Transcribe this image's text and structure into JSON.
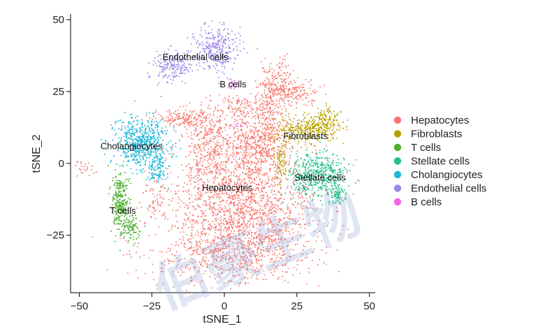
{
  "chart_data": {
    "type": "scatter",
    "title": "",
    "xlabel": "tSNE_1",
    "ylabel": "tSNE_2",
    "xlim": [
      -53,
      52
    ],
    "ylim": [
      -45,
      52
    ],
    "xticks": [
      -50,
      -25,
      0,
      25,
      50
    ],
    "yticks": [
      50,
      25,
      0,
      -25
    ],
    "xtick_labels": [
      "−50",
      "−25",
      "0",
      "25",
      "50"
    ],
    "ytick_labels": [
      "50",
      "25",
      "0",
      "−25"
    ],
    "series": [
      {
        "name": "Hepatocytes",
        "color": "#F8766D",
        "label": "Hepatocytes",
        "label_at": [
          1,
          -9.5
        ],
        "clusters": [
          {
            "cx": 6,
            "cy": -15,
            "sx": 16,
            "sy": 15,
            "n": 1900
          },
          {
            "cx": 2,
            "cy": -32,
            "sx": 18,
            "sy": 6,
            "n": 450
          },
          {
            "cx": 9,
            "cy": 8,
            "sx": 7,
            "sy": 7,
            "n": 400
          },
          {
            "cx": -14,
            "cy": 16,
            "sx": 6,
            "sy": 2,
            "n": 160
          },
          {
            "cx": -6,
            "cy": 7,
            "sx": 4,
            "sy": 9,
            "n": 300
          },
          {
            "cx": 18,
            "cy": 28,
            "sx": 4,
            "sy": 5,
            "n": 170
          },
          {
            "cx": 24,
            "cy": 25,
            "sx": 6,
            "sy": 2.5,
            "n": 160
          },
          {
            "cx": 15,
            "cy": 14,
            "sx": 3,
            "sy": 9,
            "n": 200
          },
          {
            "cx": 7,
            "cy": 20,
            "sx": 7,
            "sy": 2.5,
            "n": 110
          },
          {
            "cx": -48,
            "cy": -1,
            "sx": 2.5,
            "sy": 1.5,
            "n": 24
          },
          {
            "cx": -24,
            "cy": -13,
            "sx": 3,
            "sy": 4,
            "n": 55
          }
        ]
      },
      {
        "name": "Fibroblasts",
        "color": "#B79F00",
        "label": "Fibroblasts",
        "label_at": [
          28,
          8.5
        ],
        "clusters": [
          {
            "cx": 28,
            "cy": 12,
            "sx": 7,
            "sy": 3,
            "n": 320
          },
          {
            "cx": 35,
            "cy": 15,
            "sx": 3,
            "sy": 3,
            "n": 110
          },
          {
            "cx": 19,
            "cy": 2,
            "sx": 1.5,
            "sy": 5,
            "n": 80
          }
        ]
      },
      {
        "name": "T cells",
        "color": "#4CAF2E",
        "label": "T cells",
        "label_at": [
          -35,
          -17.5
        ],
        "clusters": [
          {
            "cx": -36,
            "cy": -14,
            "sx": 1.8,
            "sy": 7,
            "n": 280
          },
          {
            "cx": -32,
            "cy": -22,
            "sx": 2,
            "sy": 3,
            "n": 90
          }
        ]
      },
      {
        "name": "Stellate cells",
        "color": "#20BF8A",
        "label": "Stellate cells",
        "label_at": [
          33,
          -6
        ],
        "clusters": [
          {
            "cx": 32,
            "cy": -4,
            "sx": 6,
            "sy": 5,
            "n": 500
          },
          {
            "cx": 39,
            "cy": -11,
            "sx": 2,
            "sy": 2,
            "n": 70
          }
        ]
      },
      {
        "name": "Cholangiocytes",
        "color": "#1CB6D8",
        "label": "Cholangiocytes",
        "label_at": [
          -32,
          5
        ],
        "clusters": [
          {
            "cx": -29,
            "cy": 7,
            "sx": 6,
            "sy": 6,
            "n": 600
          },
          {
            "cx": -23,
            "cy": -2,
            "sx": 2.5,
            "sy": 3,
            "n": 90
          }
        ]
      },
      {
        "name": "Endothelial cells",
        "color": "#9E86EC",
        "label": "Endothelial cells",
        "label_at": [
          -10,
          36
        ],
        "clusters": [
          {
            "cx": -3,
            "cy": 40,
            "sx": 5,
            "sy": 5,
            "n": 320
          },
          {
            "cx": -18,
            "cy": 34,
            "sx": 4.5,
            "sy": 3,
            "n": 200
          }
        ]
      },
      {
        "name": "B cells",
        "color": "#F564E3",
        "label": "B cells",
        "label_at": [
          3,
          26.5
        ],
        "clusters": [
          {
            "cx": 3,
            "cy": 28,
            "sx": 1.2,
            "sy": 1.2,
            "n": 22
          },
          {
            "cx": 4,
            "cy": 13,
            "sx": 1,
            "sy": 1,
            "n": 8
          }
        ]
      }
    ]
  },
  "legend": {
    "position": "right",
    "items": [
      {
        "label": "Hepatocytes",
        "color": "#F8766D"
      },
      {
        "label": "Fibroblasts",
        "color": "#B79F00"
      },
      {
        "label": "T cells",
        "color": "#4CAF2E"
      },
      {
        "label": "Stellate cells",
        "color": "#20BF8A"
      },
      {
        "label": "Cholangiocytes",
        "color": "#1CB6D8"
      },
      {
        "label": "Endothelial cells",
        "color": "#9E86EC"
      },
      {
        "label": "B cells",
        "color": "#F564E3"
      }
    ]
  },
  "watermark": {
    "text": "伯豪生物"
  }
}
